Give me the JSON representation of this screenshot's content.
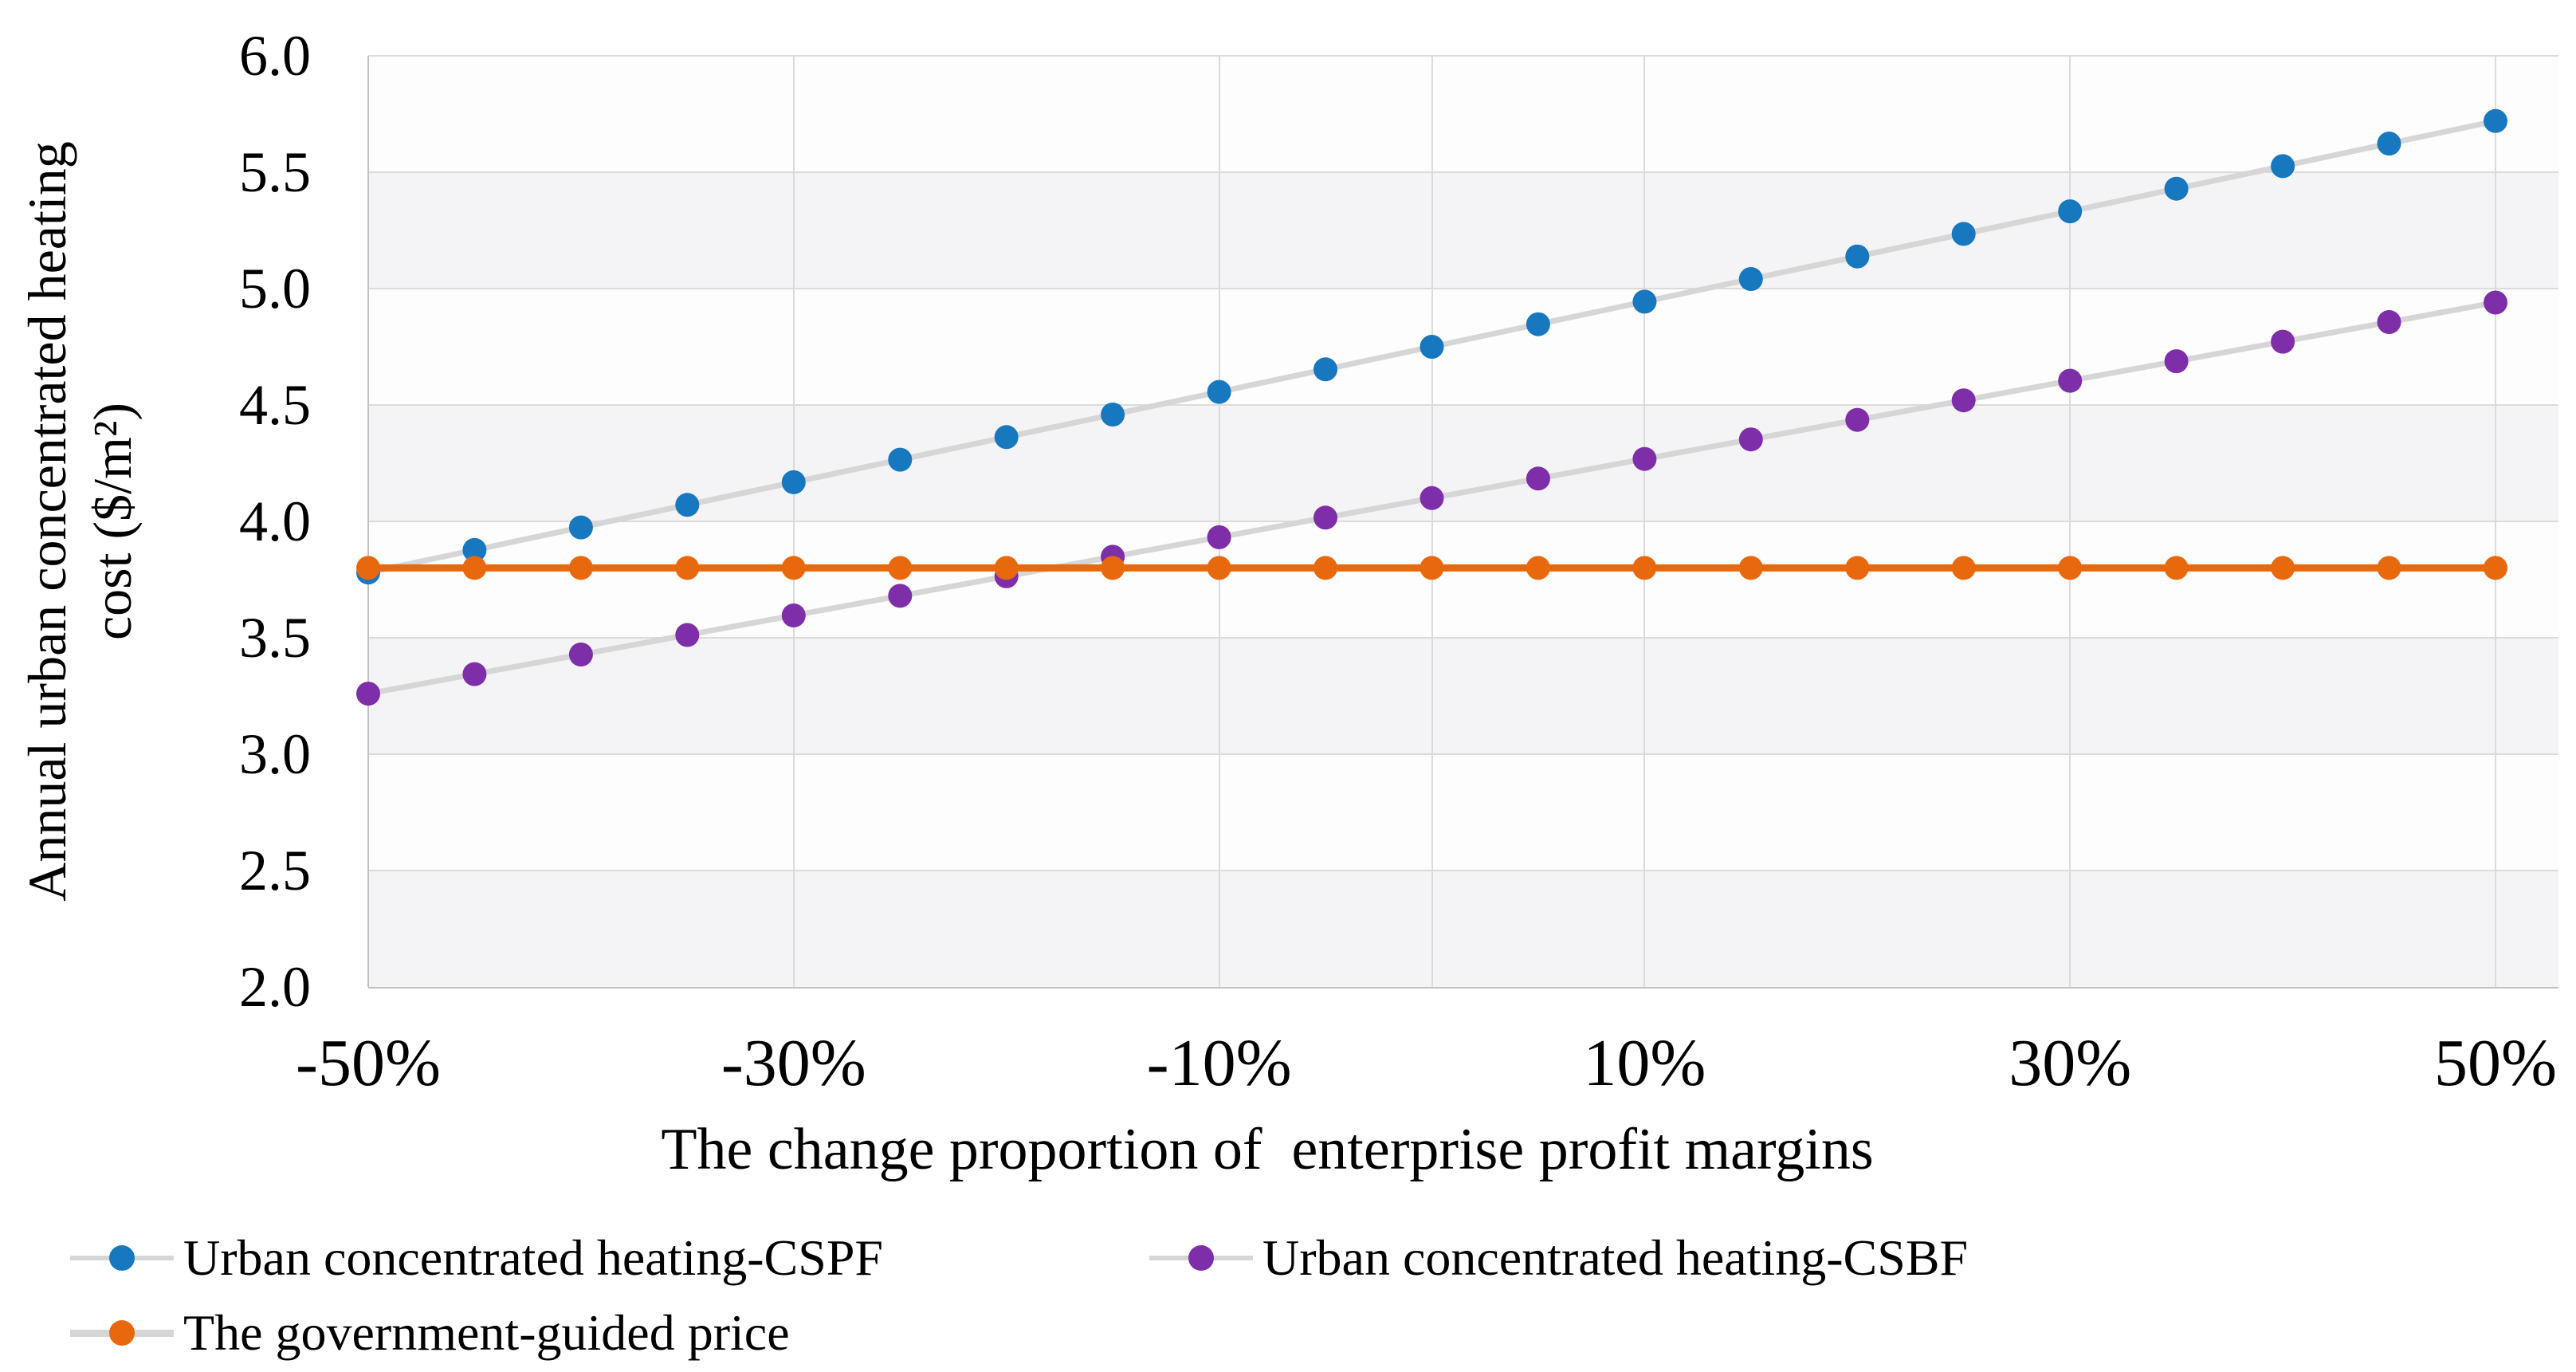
{
  "chart_data": {
    "type": "line",
    "title": "",
    "xlabel": "The change proportion of  enterprise profit margins",
    "ylabel_lines": [
      "Annual urban concentrated heating",
      "cost ($/m²)"
    ],
    "x_percent": [
      -50,
      -45,
      -40,
      -35,
      -30,
      -25,
      -20,
      -15,
      -10,
      -5,
      0,
      5,
      10,
      15,
      20,
      25,
      30,
      35,
      40,
      45,
      50
    ],
    "x_tick_labels": [
      {
        "percent": -50,
        "label": "-50%"
      },
      {
        "percent": -30,
        "label": "-30%"
      },
      {
        "percent": -10,
        "label": "-10%"
      },
      {
        "percent": 10,
        "label": "10%"
      },
      {
        "percent": 30,
        "label": "30%"
      },
      {
        "percent": 50,
        "label": "50%"
      }
    ],
    "y_ticks": [
      "6.0",
      "5.5",
      "5.0",
      "4.5",
      "4.0",
      "3.5",
      "3.0",
      "2.5",
      "2.0"
    ],
    "ylim": [
      2.0,
      6.0
    ],
    "grid": {
      "horizontal_step": 0.5,
      "vertical_lines_percent": [
        -30,
        -10,
        0,
        10,
        30,
        50
      ],
      "plot_bands": true
    },
    "legend_position": "bottom-left",
    "series": [
      {
        "name": "Urban concentrated heating-CSPF",
        "marker_color": "#1777BF",
        "line_color": "#D6D6D6",
        "values": [
          3.78,
          3.877,
          3.974,
          4.071,
          4.168,
          4.265,
          4.362,
          4.459,
          4.556,
          4.653,
          4.75,
          4.847,
          4.944,
          5.041,
          5.138,
          5.235,
          5.332,
          5.429,
          5.526,
          5.623,
          5.72
        ]
      },
      {
        "name": "Urban concentrated heating-CSBF",
        "marker_color": "#7D2EA8",
        "line_color": "#D6D6D6",
        "values": [
          3.26,
          3.344,
          3.428,
          3.512,
          3.596,
          3.68,
          3.764,
          3.848,
          3.932,
          4.016,
          4.1,
          4.184,
          4.268,
          4.352,
          4.436,
          4.52,
          4.604,
          4.688,
          4.772,
          4.856,
          4.94
        ]
      },
      {
        "name": "The government-guided price",
        "marker_color": "#E8680E",
        "line_color": "#E8680E",
        "values": [
          3.8,
          3.8,
          3.8,
          3.8,
          3.8,
          3.8,
          3.8,
          3.8,
          3.8,
          3.8,
          3.8,
          3.8,
          3.8,
          3.8,
          3.8,
          3.8,
          3.8,
          3.8,
          3.8,
          3.8,
          3.8
        ]
      }
    ]
  }
}
